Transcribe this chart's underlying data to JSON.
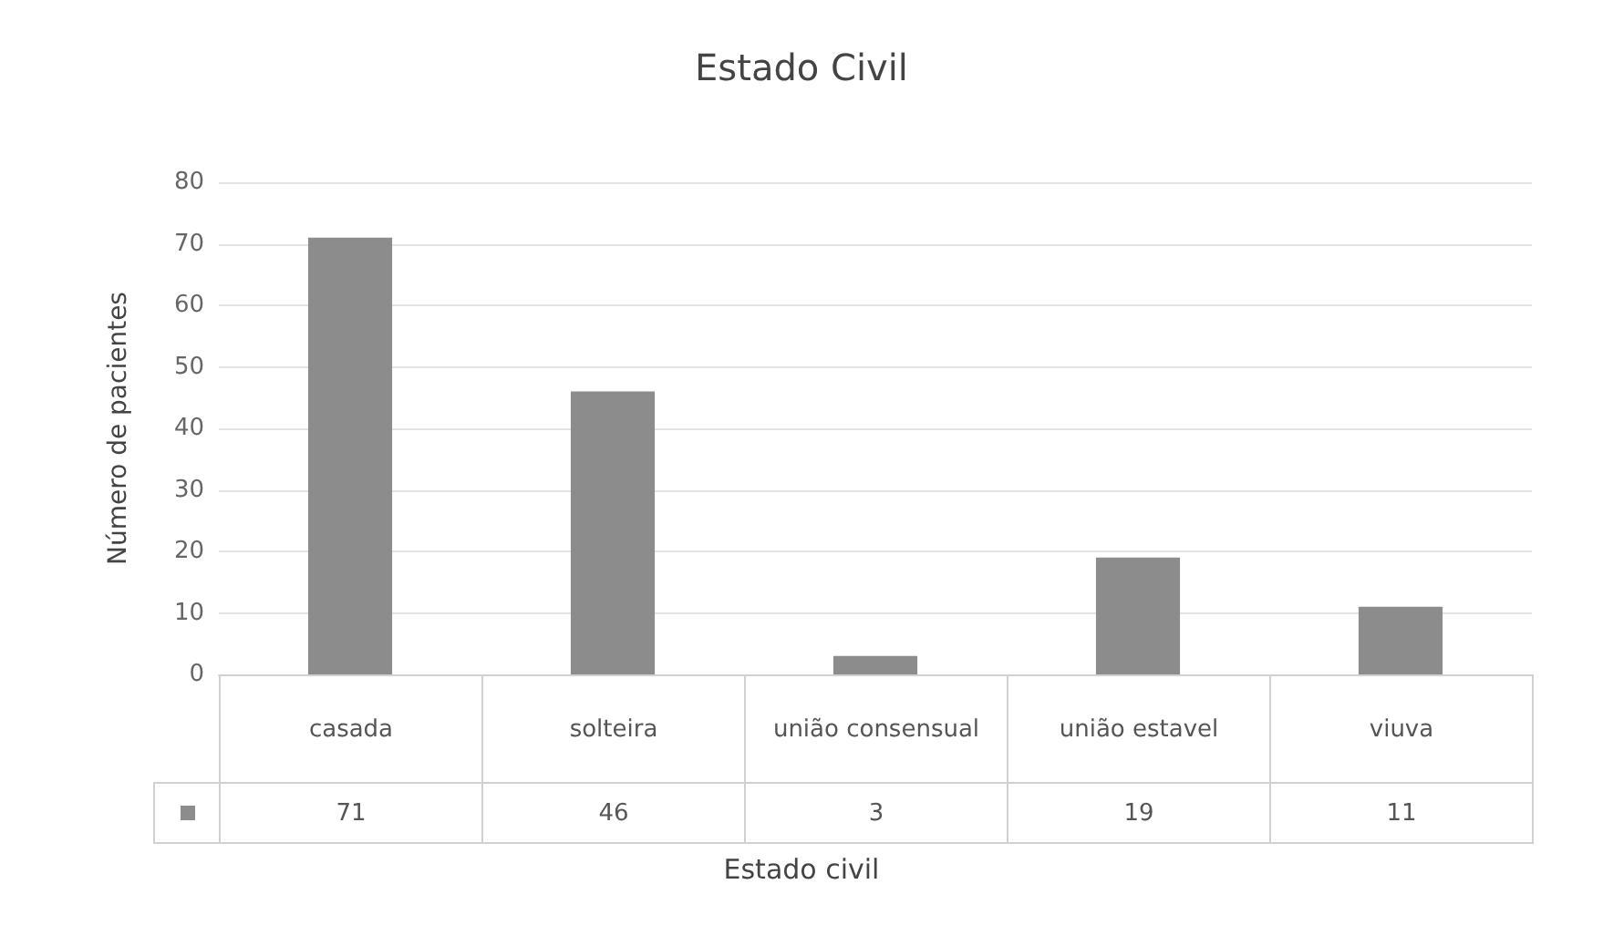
{
  "chart_data": {
    "type": "bar",
    "title": "Estado Civil",
    "xlabel": "Estado civil",
    "ylabel": "Número de pacientes",
    "categories": [
      "casada",
      "solteira",
      "união consensual",
      "união estavel",
      "viuva"
    ],
    "values": [
      71,
      46,
      3,
      19,
      11
    ],
    "color": "#8c8c8c",
    "ylim": [
      0,
      80
    ],
    "yticks": [
      0,
      10,
      20,
      30,
      40,
      50,
      60,
      70,
      80
    ],
    "grid": "y",
    "data_labels": true
  }
}
